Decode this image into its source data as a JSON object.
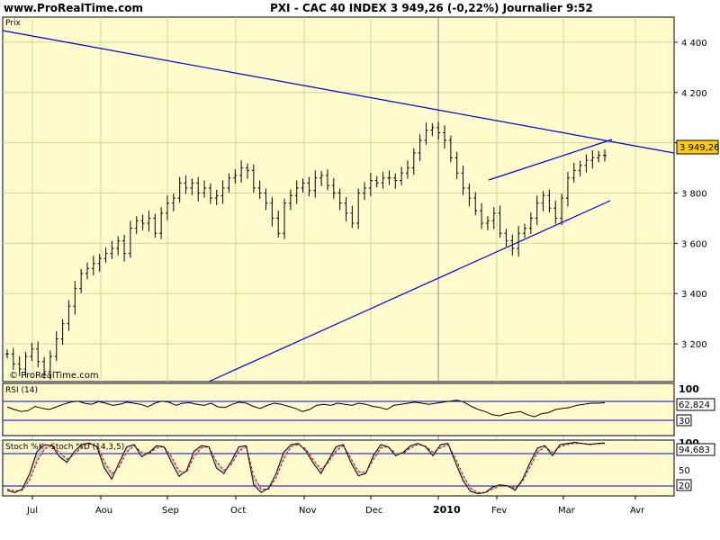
{
  "header": {
    "site": "www.ProRealTime.com",
    "title": "PXI - CAC 40 INDEX   3 949,26 (-0,22%)   Journalier  9:52"
  },
  "main_panel": {
    "label": "Prix",
    "watermark": "© ProRealTime.com",
    "last_value_label": "3 949,26"
  },
  "rsi_panel": {
    "label": "RSI (14)",
    "last_value_label": "62,824",
    "upper_level_label": "100",
    "lower_level_label": "30"
  },
  "stoch_panel": {
    "label_k": "Stoch %K",
    "label_d": "Stoch %D (14,3,5)",
    "last_value_label": "94,683",
    "level_100": "100",
    "level_50": "50",
    "level_20": "20"
  },
  "colors": {
    "plot_bg": "#fffbcc",
    "trendline": "#0000cc",
    "bars": "#000000",
    "stoch_d": "#cc0000",
    "value_box": "#ffcc00"
  },
  "chart_data": [
    {
      "type": "ohlc",
      "title": "PXI - CAC 40 INDEX",
      "ylabel": "Prix",
      "ylim": [
        3050,
        4500
      ],
      "y_ticks": [
        "3 200",
        "3 400",
        "3 600",
        "3 800",
        "4 000",
        "4 200",
        "4 400"
      ],
      "y_tick_values": [
        3200,
        3400,
        3600,
        3800,
        4000,
        4200,
        4400
      ],
      "x_ticks": [
        "Jul",
        "Aou",
        "Sep",
        "Oct",
        "Nov",
        "Dec",
        "2010",
        "Fev",
        "Mar",
        "Avr"
      ],
      "last_value": 3949.26,
      "change_pct": -0.22,
      "close_series": [
        3160,
        3120,
        3100,
        3150,
        3180,
        3130,
        3090,
        3150,
        3220,
        3280,
        3350,
        3420,
        3480,
        3500,
        3520,
        3540,
        3560,
        3580,
        3610,
        3560,
        3660,
        3690,
        3680,
        3700,
        3640,
        3720,
        3760,
        3780,
        3840,
        3820,
        3840,
        3800,
        3820,
        3780,
        3790,
        3820,
        3860,
        3870,
        3900,
        3890,
        3820,
        3800,
        3760,
        3700,
        3640,
        3760,
        3790,
        3820,
        3840,
        3810,
        3860,
        3870,
        3830,
        3800,
        3760,
        3720,
        3680,
        3800,
        3820,
        3850,
        3840,
        3860,
        3860,
        3850,
        3880,
        3900,
        3960,
        4010,
        4050,
        4060,
        4040,
        4010,
        3940,
        3880,
        3820,
        3780,
        3730,
        3680,
        3690,
        3720,
        3640,
        3610,
        3580,
        3640,
        3660,
        3700,
        3760,
        3790,
        3740,
        3700,
        3780,
        3860,
        3890,
        3910,
        3930,
        3940,
        3950,
        3949
      ],
      "trendlines": [
        {
          "name": "resistance",
          "points": [
            [
              "start",
              4480
            ],
            [
              "end",
              3930
            ]
          ]
        },
        {
          "name": "support",
          "points": [
            [
              "Aou",
              3050
            ],
            [
              "Mar",
              3730
            ]
          ]
        },
        {
          "name": "channel-upper",
          "points": [
            [
              "Jan",
              3820
            ],
            [
              "Mar",
              3990
            ]
          ]
        }
      ]
    },
    {
      "type": "line",
      "title": "RSI (14)",
      "ylim": [
        0,
        100
      ],
      "levels": [
        30,
        70
      ],
      "last_value": 62.824,
      "values": [
        55,
        50,
        46,
        48,
        56,
        52,
        50,
        55,
        60,
        64,
        66,
        62,
        60,
        65,
        62,
        58,
        60,
        64,
        62,
        60,
        55,
        62,
        66,
        64,
        58,
        62,
        63,
        60,
        58,
        62,
        55,
        54,
        60,
        64,
        62,
        56,
        52,
        58,
        62,
        60,
        56,
        52,
        46,
        50,
        58,
        60,
        58,
        62,
        60,
        58,
        62,
        60,
        56,
        54,
        50,
        58,
        60,
        62,
        64,
        62,
        60,
        62,
        64,
        66,
        68,
        64,
        56,
        50,
        46,
        40,
        38,
        42,
        44,
        46,
        40,
        36,
        42,
        44,
        50,
        52,
        54,
        58,
        60,
        62,
        62,
        63
      ]
    },
    {
      "type": "line",
      "title": "Stoch %K / Stoch %D (14,3,5)",
      "ylim": [
        0,
        100
      ],
      "levels": [
        20,
        50,
        80
      ],
      "last_value": 94.683,
      "series": [
        {
          "name": "Stoch %K",
          "values": [
            10,
            6,
            12,
            40,
            80,
            92,
            90,
            70,
            60,
            80,
            92,
            95,
            88,
            50,
            30,
            60,
            88,
            92,
            70,
            78,
            90,
            88,
            60,
            35,
            45,
            80,
            90,
            88,
            50,
            40,
            62,
            88,
            90,
            20,
            6,
            14,
            40,
            78,
            92,
            94,
            80,
            58,
            40,
            64,
            88,
            92,
            60,
            36,
            40,
            72,
            92,
            88,
            72,
            78,
            90,
            94,
            88,
            72,
            92,
            94,
            60,
            28,
            8,
            4,
            6,
            16,
            20,
            18,
            10,
            30,
            60,
            86,
            90,
            72,
            92,
            94,
            96,
            94,
            92,
            94,
            95
          ]
        },
        {
          "name": "Stoch %D",
          "values": [
            12,
            9,
            10,
            28,
            62,
            84,
            90,
            78,
            66,
            74,
            88,
            93,
            90,
            62,
            40,
            52,
            78,
            90,
            78,
            76,
            86,
            88,
            70,
            45,
            42,
            70,
            86,
            88,
            62,
            46,
            56,
            80,
            88,
            36,
            12,
            12,
            32,
            66,
            88,
            92,
            84,
            64,
            48,
            60,
            80,
            90,
            68,
            44,
            42,
            64,
            86,
            88,
            76,
            76,
            86,
            92,
            89,
            78,
            86,
            92,
            68,
            38,
            14,
            6,
            6,
            12,
            18,
            18,
            14,
            26,
            52,
            78,
            88,
            78,
            88,
            92,
            94,
            94,
            93,
            93,
            94
          ]
        }
      ]
    }
  ]
}
